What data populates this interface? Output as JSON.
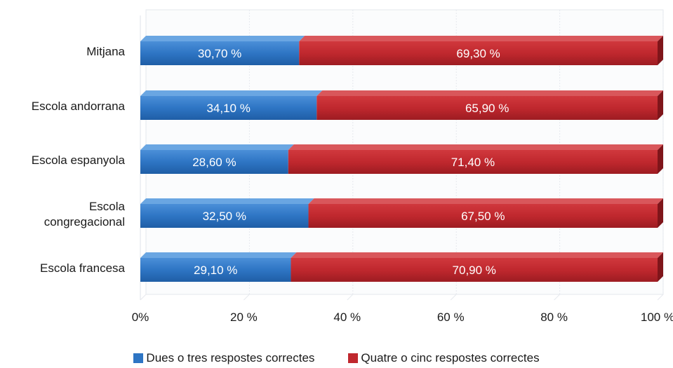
{
  "chart_data": {
    "type": "bar",
    "orientation": "horizontal",
    "stacked": true,
    "categories": [
      "Mitjana",
      "Escola andorrana",
      "Escola espanyola",
      "Escola congregacional",
      "Escola francesa"
    ],
    "category_labels": [
      [
        "Mitjana"
      ],
      [
        "Escola andorrana"
      ],
      [
        "Escola espanyola"
      ],
      [
        "Escola",
        "congregacional"
      ],
      [
        "Escola francesa"
      ]
    ],
    "series": [
      {
        "name": "Dues o tres respostes correctes",
        "color": "#2e75c4",
        "values": [
          30.7,
          34.1,
          28.6,
          32.5,
          29.1
        ],
        "labels": [
          "30,70 %",
          "34,10 %",
          "28,60 %",
          "32,50 %",
          "29,10 %"
        ]
      },
      {
        "name": "Quatre o cinc respostes correctes",
        "color": "#c0282e",
        "values": [
          69.3,
          65.9,
          71.4,
          67.5,
          70.9
        ],
        "labels": [
          "69,30 %",
          "65,90 %",
          "71,40 %",
          "67,50 %",
          "70,90 %"
        ]
      }
    ],
    "xlim": [
      0,
      100
    ],
    "x_ticks": [
      0,
      20,
      40,
      60,
      80,
      100
    ],
    "x_tick_labels": [
      "0%",
      "20 %",
      "40 %",
      "60 %",
      "80 %",
      "100 %"
    ],
    "grid": true,
    "legend_position": "bottom"
  },
  "legend": {
    "item1": "Dues o tres respostes correctes",
    "item2": "Quatre o cinc respostes correctes"
  }
}
